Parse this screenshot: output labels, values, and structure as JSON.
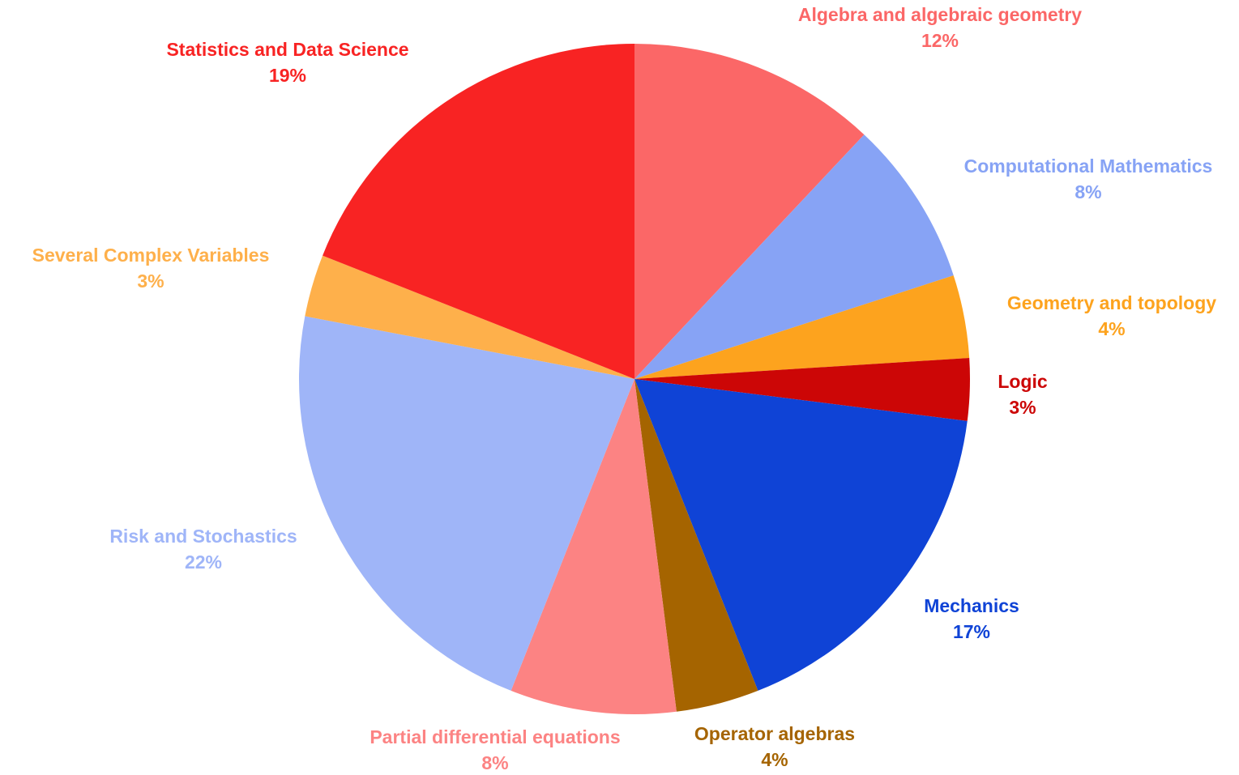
{
  "chart_data": {
    "type": "pie",
    "categories": [
      "Algebra and algebraic geometry",
      "Computational Mathematics",
      "Geometry and topology",
      "Logic",
      "Mechanics",
      "Operator algebras",
      "Partial differential equations",
      "Risk and Stochastics",
      "Several Complex Variables",
      "Statistics and Data Science"
    ],
    "values": [
      12,
      8,
      4,
      3,
      17,
      4,
      8,
      22,
      3,
      19
    ],
    "value_labels": [
      "12%",
      "8%",
      "4%",
      "3%",
      "17%",
      "4%",
      "8%",
      "22%",
      "3%",
      "19%"
    ],
    "colors": [
      "#fb6767",
      "#87a3f5",
      "#fda31e",
      "#cc0606",
      "#0f43d6",
      "#a56400",
      "#fc8383",
      "#9fb5f8",
      "#feb04b",
      "#f82323"
    ]
  }
}
